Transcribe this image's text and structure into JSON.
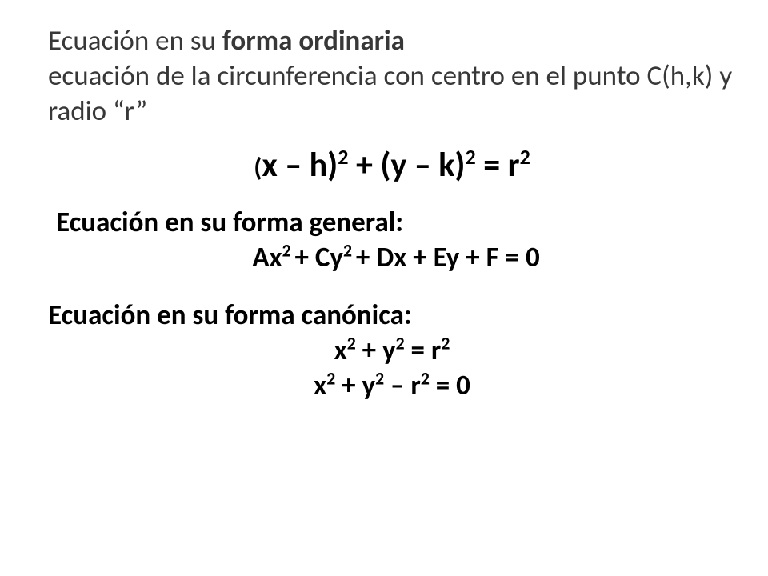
{
  "colors": {
    "background": "#ffffff",
    "intro_text": "#383838",
    "equation_text": "#000000"
  },
  "typography": {
    "family": "Calibri",
    "intro_size_pt": 26,
    "equation_large_size_pt": 32,
    "equation_size_pt": 26
  },
  "intro": {
    "part1": "Ecuación en su ",
    "bold": "forma ordinaria",
    "part2": "ecuación de la circunferencia con centro en el punto C(h,k) y radio “r”"
  },
  "ordinary": {
    "open_paren": "(",
    "seg1": "x – h)",
    "sup1": "2",
    "seg2": " + (y – k)",
    "sup2": "2",
    "seg3": " = r",
    "sup3": "2"
  },
  "general": {
    "label": "Ecuación en su forma general:",
    "seg1": "Ax",
    "sup1": "2 ",
    "seg2": "+ Cy",
    "sup2": "2 ",
    "seg3": "+ Dx + Ey + F = 0"
  },
  "canonical": {
    "label": "Ecuación en su forma canónica:",
    "eq1": {
      "seg1": "x",
      "sup1": "2",
      "seg2": " + y",
      "sup2": "2",
      "seg3": " = r",
      "sup3": "2"
    },
    "eq2": {
      "seg1": "x",
      "sup1": "2",
      "seg2": " + y",
      "sup2": "2",
      "seg3": " – r",
      "sup3": "2",
      "seg4": " = 0"
    }
  }
}
